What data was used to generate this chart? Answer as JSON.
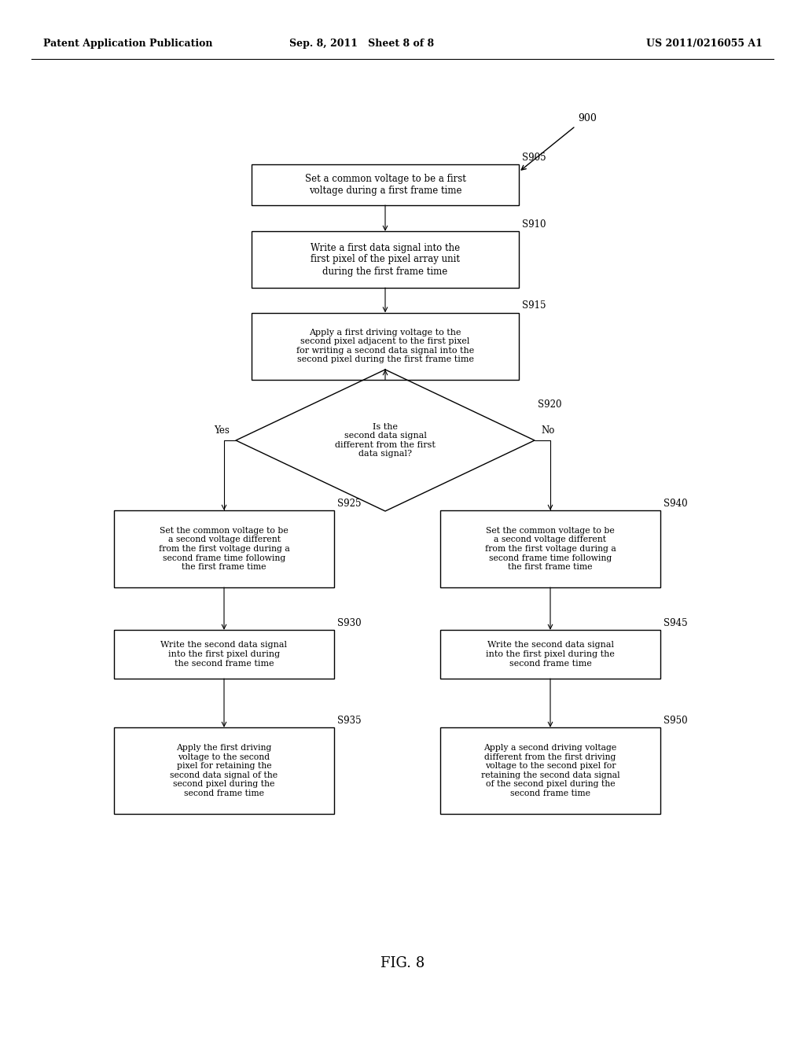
{
  "bg_color": "#ffffff",
  "header_left": "Patent Application Publication",
  "header_mid": "Sep. 8, 2011   Sheet 8 of 8",
  "header_right": "US 2011/0216055 A1",
  "fig_label": "FIG. 8",
  "diagram_label": "900",
  "s905_text": "Set a common voltage to be a first\nvoltage during a first frame time",
  "s910_text": "Write a first data signal into the\nfirst pixel of the pixel array unit\nduring the first frame time",
  "s915_text": "Apply a first driving voltage to the\nsecond pixel adjacent to the first pixel\nfor writing a second data signal into the\nsecond pixel during the first frame time",
  "s920_text": "Is the\nsecond data signal\ndifferent from the first\ndata signal?",
  "s925_text": "Set the common voltage to be\na second voltage different\nfrom the first voltage during a\nsecond frame time following\nthe first frame time",
  "s940_text": "Set the common voltage to be\na second voltage different\nfrom the first voltage during a\nsecond frame time following\nthe first frame time",
  "s930_text": "Write the second data signal\ninto the first pixel during\nthe second frame time",
  "s945_text": "Write the second data signal\ninto the first pixel during the\nsecond frame time",
  "s935_text": "Apply the first driving\nvoltage to the second\npixel for retaining the\nsecond data signal of the\nsecond pixel during the\nsecond frame time",
  "s950_text": "Apply a second driving voltage\ndifferent from the first driving\nvoltage to the second pixel for\nretaining the second data signal\nof the second pixel during the\nsecond frame time"
}
